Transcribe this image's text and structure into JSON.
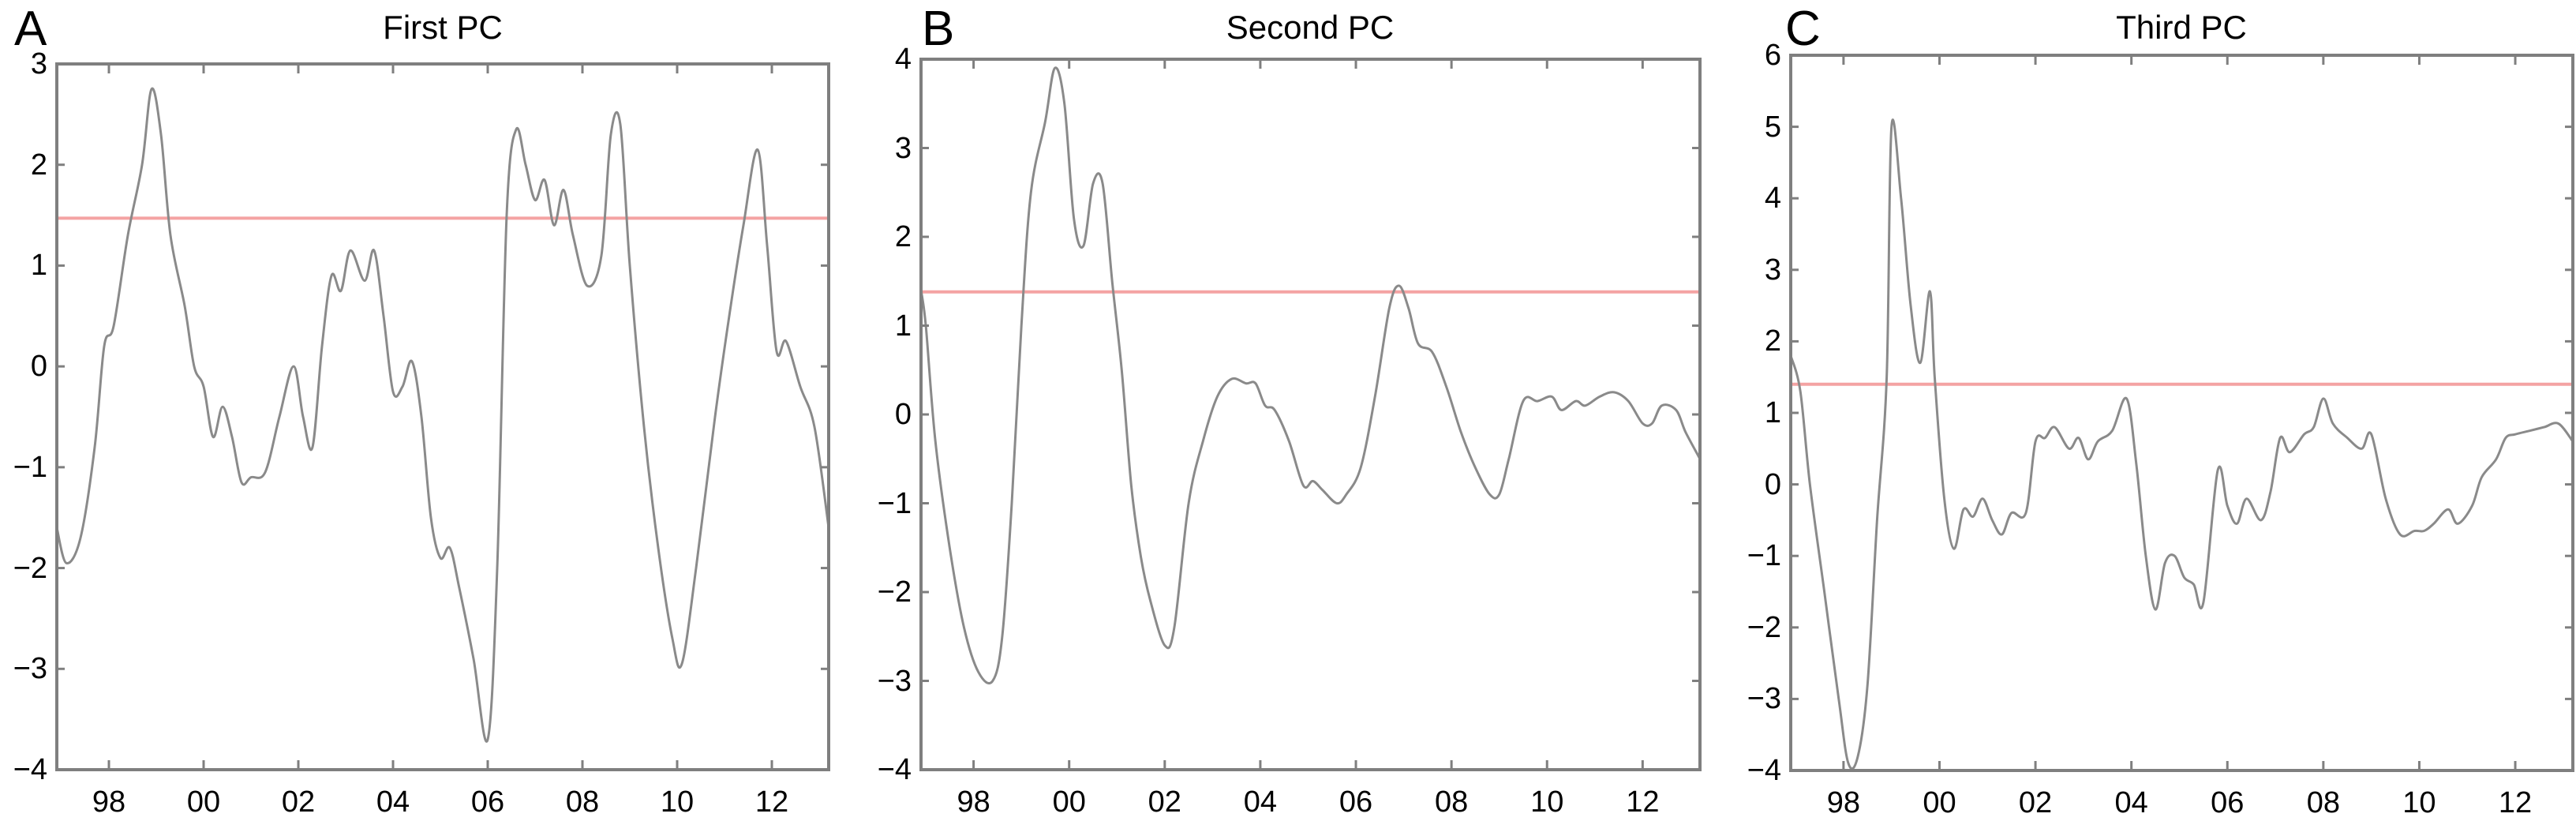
{
  "figure": {
    "panels": [
      {
        "letter": "A",
        "title": "First PC"
      },
      {
        "letter": "B",
        "title": "Second PC"
      },
      {
        "letter": "C",
        "title": "Third PC"
      }
    ],
    "colors": {
      "series": "#8a8a8a",
      "threshold": "#f4a3a3",
      "axes": "#7f7f7f",
      "text": "#000000"
    }
  },
  "chart_data": [
    {
      "type": "line",
      "title": "First PC",
      "panel_label": "A",
      "xlabel": "",
      "ylabel": "",
      "xlim": [
        1996.9,
        2013.2
      ],
      "ylim": [
        -4,
        3
      ],
      "yticks": [
        3,
        2,
        1,
        0,
        -1,
        -2,
        -3,
        -4
      ],
      "ytick_labels": [
        "3",
        "2",
        "1",
        "0",
        "−1",
        "−2",
        "−3",
        "−4"
      ],
      "xticks": [
        1998,
        2000,
        2002,
        2004,
        2006,
        2008,
        2010,
        2012
      ],
      "xtick_labels": [
        "98",
        "00",
        "02",
        "04",
        "06",
        "08",
        "10",
        "12"
      ],
      "grid": false,
      "threshold": 1.47,
      "series": [
        {
          "name": "First PC",
          "x": [
            1996.9,
            1997.1,
            1997.4,
            1997.7,
            1997.9,
            1998.1,
            1998.4,
            1998.7,
            1998.9,
            1999.1,
            1999.3,
            1999.6,
            1999.8,
            2000.0,
            2000.2,
            2000.4,
            2000.6,
            2000.8,
            2001.0,
            2001.3,
            2001.6,
            2001.9,
            2002.1,
            2002.3,
            2002.5,
            2002.7,
            2002.9,
            2003.1,
            2003.4,
            2003.6,
            2003.8,
            2004.0,
            2004.2,
            2004.4,
            2004.6,
            2004.8,
            2005.0,
            2005.2,
            2005.4,
            2005.7,
            2006.0,
            2006.2,
            2006.4,
            2006.6,
            2006.8,
            2007.0,
            2007.2,
            2007.4,
            2007.6,
            2007.8,
            2008.1,
            2008.4,
            2008.6,
            2008.8,
            2009.0,
            2009.3,
            2009.6,
            2009.9,
            2010.1,
            2010.4,
            2010.8,
            2011.1,
            2011.4,
            2011.7,
            2011.9,
            2012.1,
            2012.3,
            2012.6,
            2012.9,
            2013.2
          ],
          "values": [
            -1.6,
            -1.95,
            -1.7,
            -0.8,
            0.2,
            0.4,
            1.3,
            2.0,
            2.75,
            2.3,
            1.3,
            0.6,
            0.0,
            -0.2,
            -0.7,
            -0.4,
            -0.7,
            -1.15,
            -1.1,
            -1.05,
            -0.5,
            0.0,
            -0.5,
            -0.8,
            0.2,
            0.9,
            0.75,
            1.15,
            0.85,
            1.15,
            0.5,
            -0.25,
            -0.2,
            0.05,
            -0.5,
            -1.5,
            -1.9,
            -1.8,
            -2.2,
            -2.9,
            -3.7,
            -2.0,
            1.5,
            2.35,
            2.0,
            1.65,
            1.85,
            1.4,
            1.75,
            1.3,
            0.8,
            1.1,
            2.3,
            2.4,
            1.0,
            -0.6,
            -1.8,
            -2.7,
            -2.95,
            -2.0,
            -0.5,
            0.5,
            1.4,
            2.15,
            1.2,
            0.15,
            0.25,
            -0.2,
            -0.6,
            -1.6
          ]
        }
      ]
    },
    {
      "type": "line",
      "title": "Second PC",
      "panel_label": "B",
      "xlabel": "",
      "ylabel": "",
      "xlim": [
        1996.9,
        2013.2
      ],
      "ylim": [
        -4,
        4
      ],
      "yticks": [
        4,
        3,
        2,
        1,
        0,
        -1,
        -2,
        -3,
        -4
      ],
      "ytick_labels": [
        "4",
        "3",
        "2",
        "1",
        "0",
        "−1",
        "−2",
        "−3",
        "−4"
      ],
      "xticks": [
        1998,
        2000,
        2002,
        2004,
        2006,
        2008,
        2010,
        2012
      ],
      "xtick_labels": [
        "98",
        "00",
        "02",
        "04",
        "06",
        "08",
        "10",
        "12"
      ],
      "grid": false,
      "threshold": 1.38,
      "series": [
        {
          "name": "Second PC",
          "x": [
            1996.9,
            1997.0,
            1997.2,
            1997.5,
            1997.8,
            1998.1,
            1998.4,
            1998.6,
            1998.8,
            1999.0,
            1999.2,
            1999.5,
            1999.7,
            1999.9,
            2000.1,
            2000.3,
            2000.5,
            2000.7,
            2000.9,
            2001.1,
            2001.3,
            2001.5,
            2001.7,
            2002.0,
            2002.2,
            2002.5,
            2002.8,
            2003.1,
            2003.4,
            2003.7,
            2003.9,
            2004.1,
            2004.3,
            2004.6,
            2004.9,
            2005.1,
            2005.3,
            2005.6,
            2005.8,
            2006.1,
            2006.4,
            2006.7,
            2006.9,
            2007.1,
            2007.3,
            2007.6,
            2007.9,
            2008.2,
            2008.5,
            2008.8,
            2009.0,
            2009.2,
            2009.5,
            2009.8,
            2010.1,
            2010.3,
            2010.6,
            2010.8,
            2011.1,
            2011.4,
            2011.7,
            2012.0,
            2012.2,
            2012.4,
            2012.7,
            2012.9,
            2013.2
          ],
          "values": [
            1.4,
            1.0,
            -0.3,
            -1.5,
            -2.4,
            -2.9,
            -3.0,
            -2.5,
            -1.0,
            1.0,
            2.5,
            3.3,
            3.9,
            3.5,
            2.2,
            1.9,
            2.6,
            2.6,
            1.5,
            0.5,
            -0.8,
            -1.6,
            -2.1,
            -2.6,
            -2.4,
            -1.0,
            -0.3,
            0.2,
            0.4,
            0.35,
            0.35,
            0.1,
            0.05,
            -0.3,
            -0.8,
            -0.75,
            -0.85,
            -1.0,
            -0.9,
            -0.6,
            0.2,
            1.2,
            1.45,
            1.2,
            0.8,
            0.7,
            0.3,
            -0.2,
            -0.6,
            -0.9,
            -0.9,
            -0.5,
            0.15,
            0.15,
            0.2,
            0.05,
            0.15,
            0.1,
            0.2,
            0.25,
            0.15,
            -0.1,
            -0.1,
            0.1,
            0.05,
            -0.2,
            -0.5
          ]
        }
      ]
    },
    {
      "type": "line",
      "title": "Third PC",
      "panel_label": "C",
      "xlabel": "",
      "ylabel": "",
      "xlim": [
        1996.9,
        2013.2
      ],
      "ylim": [
        -4,
        6
      ],
      "yticks": [
        6,
        5,
        4,
        3,
        2,
        1,
        0,
        -1,
        -2,
        -3,
        -4
      ],
      "ytick_labels": [
        "6",
        "5",
        "4",
        "3",
        "2",
        "1",
        "0",
        "−1",
        "−2",
        "−3",
        "−4"
      ],
      "xticks": [
        1998,
        2000,
        2002,
        2004,
        2006,
        2008,
        2010,
        2012
      ],
      "xtick_labels": [
        "98",
        "00",
        "02",
        "04",
        "06",
        "08",
        "10",
        "12"
      ],
      "grid": false,
      "threshold": 1.4,
      "series": [
        {
          "name": "Third PC",
          "x": [
            1996.9,
            1997.1,
            1997.3,
            1997.6,
            1997.9,
            1998.1,
            1998.3,
            1998.5,
            1998.7,
            1998.9,
            1999.0,
            1999.2,
            1999.4,
            1999.6,
            1999.8,
            1999.9,
            2000.1,
            2000.3,
            2000.5,
            2000.7,
            2000.9,
            2001.1,
            2001.3,
            2001.5,
            2001.8,
            2002.0,
            2002.2,
            2002.4,
            2002.7,
            2002.9,
            2003.1,
            2003.3,
            2003.6,
            2003.9,
            2004.1,
            2004.3,
            2004.5,
            2004.7,
            2004.9,
            2005.1,
            2005.3,
            2005.5,
            2005.8,
            2006.0,
            2006.2,
            2006.4,
            2006.7,
            2006.9,
            2007.1,
            2007.3,
            2007.6,
            2007.8,
            2008.0,
            2008.2,
            2008.5,
            2008.8,
            2009.0,
            2009.3,
            2009.6,
            2009.9,
            2010.1,
            2010.3,
            2010.6,
            2010.8,
            2011.1,
            2011.3,
            2011.6,
            2011.8,
            2012.0,
            2012.3,
            2012.6,
            2012.9,
            2013.2
          ],
          "values": [
            1.8,
            1.3,
            0.0,
            -1.5,
            -3.0,
            -3.9,
            -3.8,
            -2.8,
            -0.5,
            1.5,
            5.0,
            4.0,
            2.5,
            1.7,
            2.7,
            1.5,
            -0.2,
            -0.9,
            -0.35,
            -0.45,
            -0.2,
            -0.5,
            -0.7,
            -0.4,
            -0.4,
            0.6,
            0.65,
            0.8,
            0.5,
            0.65,
            0.35,
            0.6,
            0.75,
            1.2,
            0.3,
            -1.0,
            -1.75,
            -1.1,
            -1.0,
            -1.3,
            -1.4,
            -1.65,
            0.2,
            -0.3,
            -0.55,
            -0.2,
            -0.5,
            -0.1,
            0.65,
            0.45,
            0.7,
            0.8,
            1.2,
            0.85,
            0.65,
            0.5,
            0.7,
            -0.2,
            -0.7,
            -0.65,
            -0.65,
            -0.55,
            -0.35,
            -0.55,
            -0.3,
            0.1,
            0.35,
            0.65,
            0.7,
            0.75,
            0.8,
            0.85,
            0.6
          ]
        }
      ]
    }
  ]
}
